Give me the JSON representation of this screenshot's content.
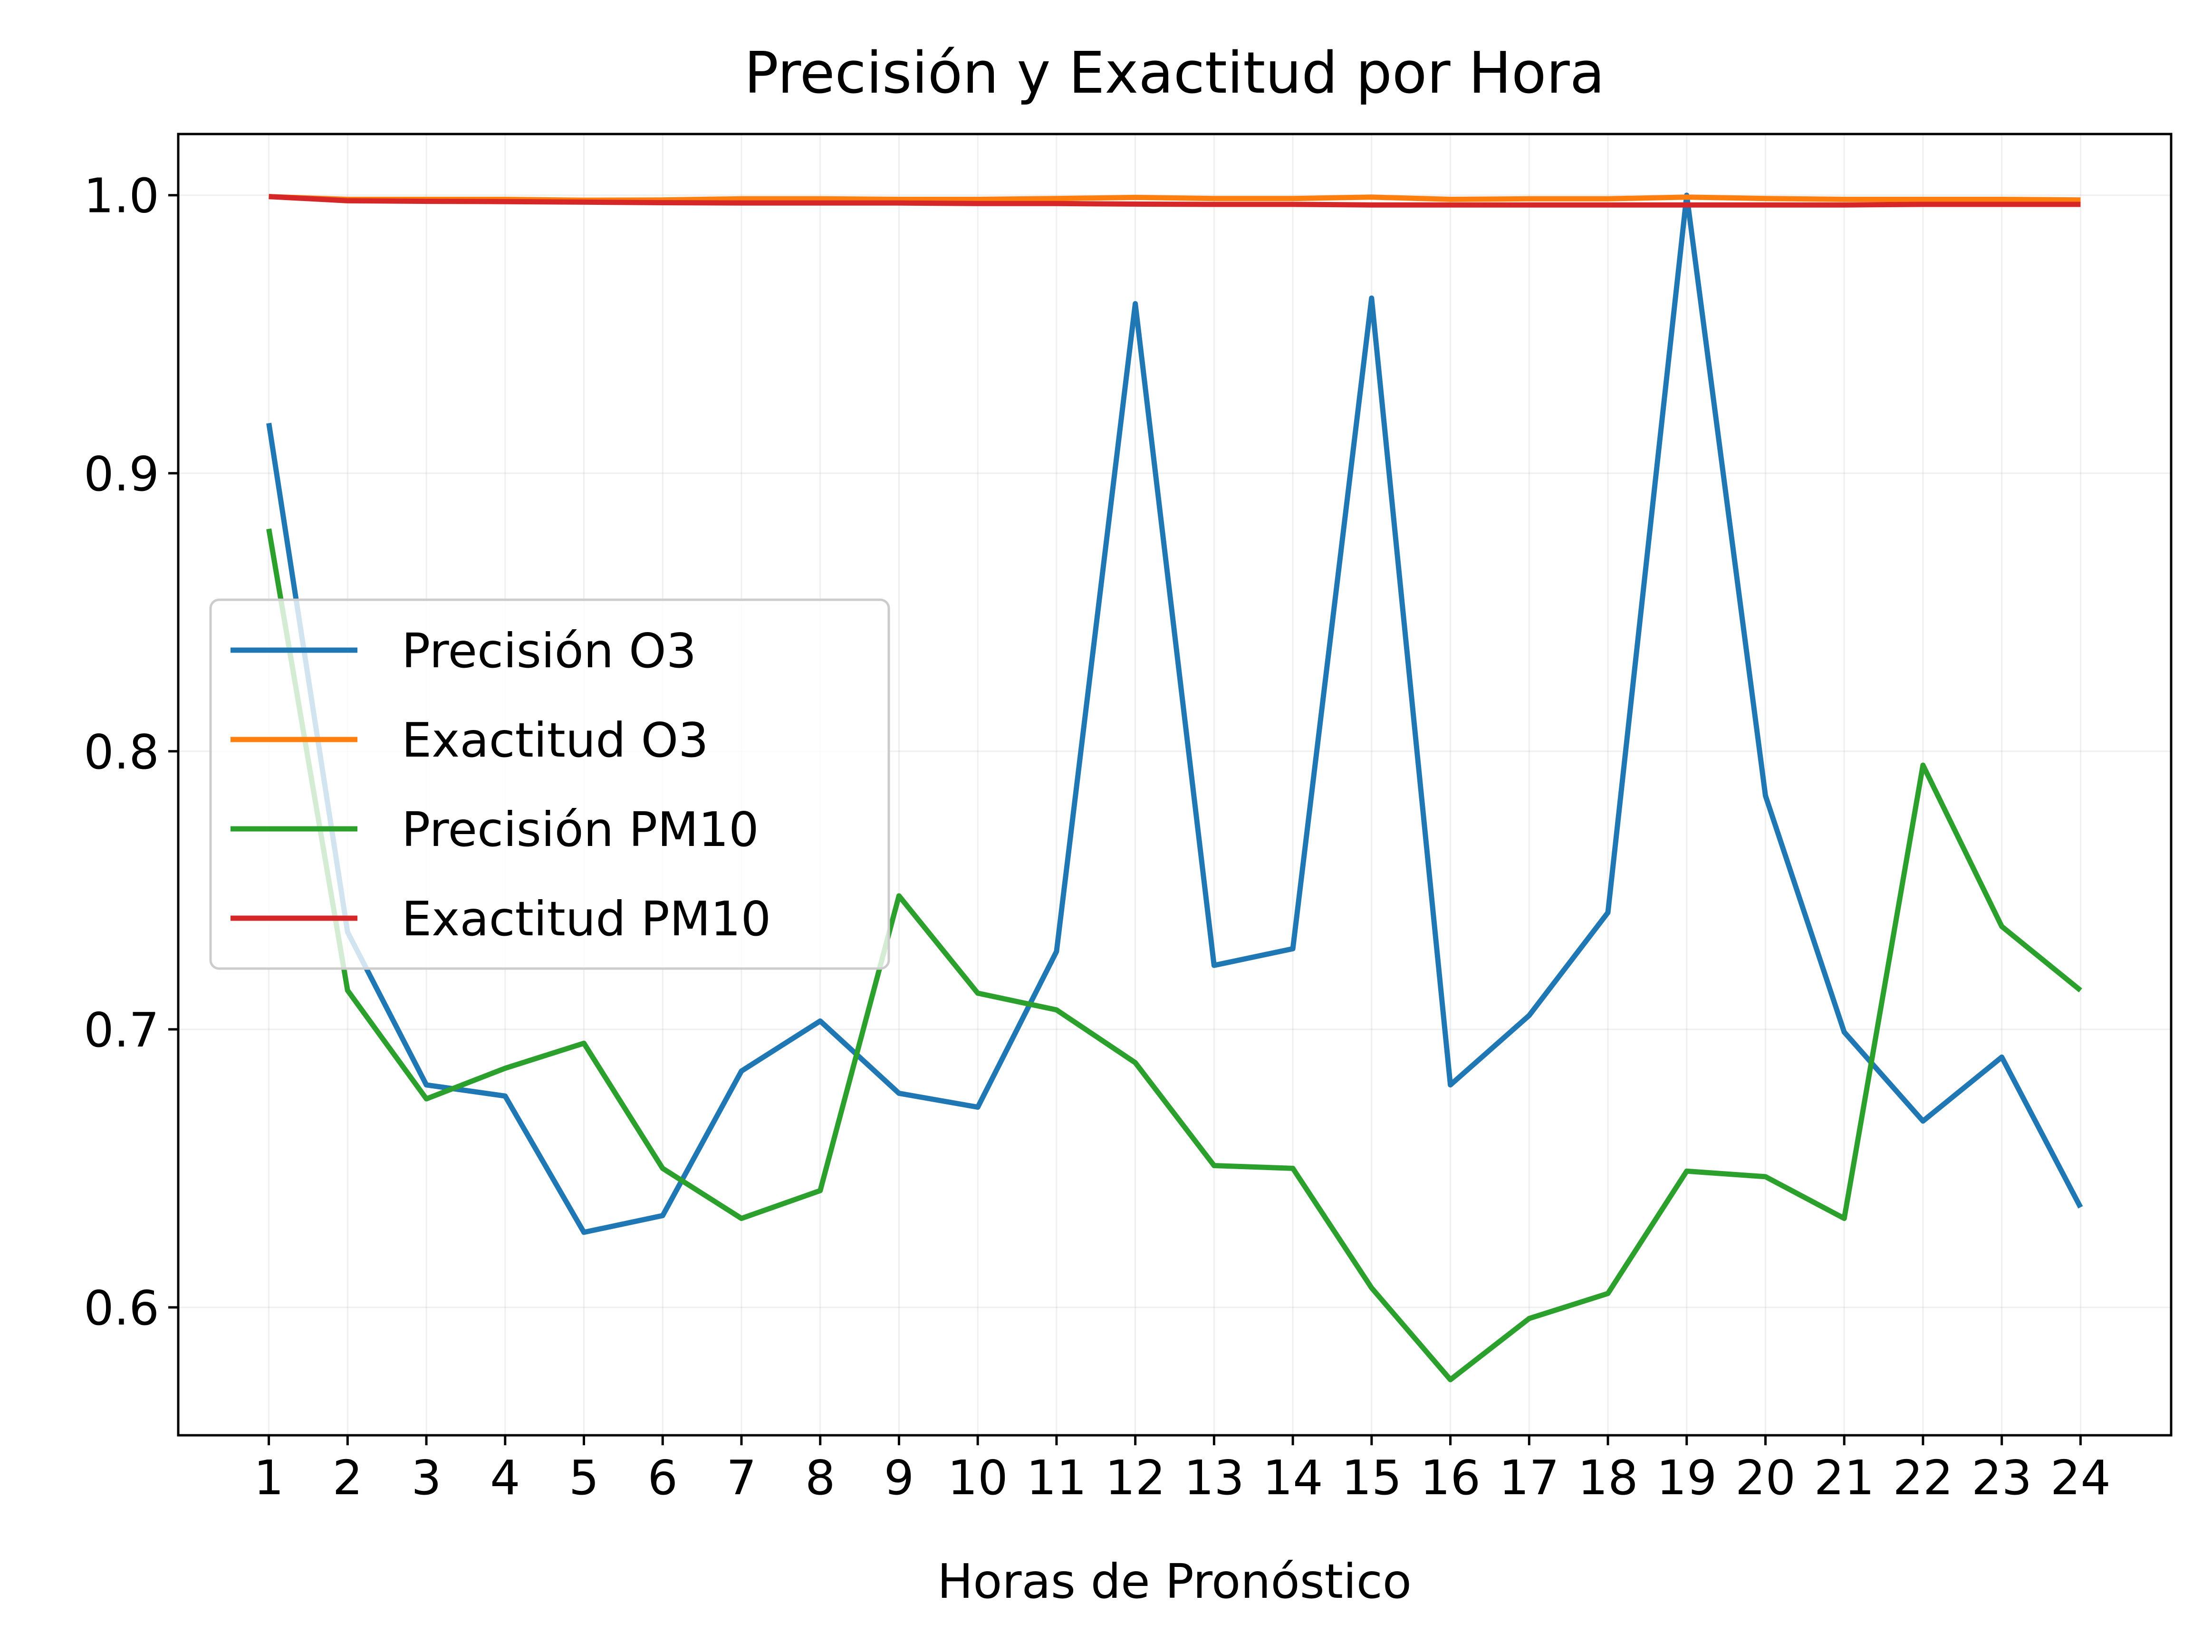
{
  "chart_data": {
    "type": "line",
    "title": "Precisión y Exactitud por Hora",
    "xlabel": "Horas de Pronóstico",
    "ylabel": "",
    "x": [
      1,
      2,
      3,
      4,
      5,
      6,
      7,
      8,
      9,
      10,
      11,
      12,
      13,
      14,
      15,
      16,
      17,
      18,
      19,
      20,
      21,
      22,
      23,
      24
    ],
    "xlim": [
      -0.15,
      25.15
    ],
    "ylim": [
      0.554,
      1.022
    ],
    "xticks": [
      "1",
      "2",
      "3",
      "4",
      "5",
      "6",
      "7",
      "8",
      "9",
      "10",
      "11",
      "12",
      "13",
      "14",
      "15",
      "16",
      "17",
      "18",
      "19",
      "20",
      "21",
      "22",
      "23",
      "24"
    ],
    "yticks": [
      "0.6",
      "0.7",
      "0.8",
      "0.9",
      "1.0"
    ],
    "grid": true,
    "legend_position": "center-left",
    "series": [
      {
        "name": "Precisión O3",
        "color": "#1f77b4",
        "values": [
          0.918,
          0.735,
          0.68,
          0.676,
          0.627,
          0.633,
          0.685,
          0.703,
          0.677,
          0.672,
          0.728,
          0.961,
          0.723,
          0.729,
          0.963,
          0.68,
          0.705,
          0.742,
          1.0,
          0.784,
          0.699,
          0.667,
          0.69,
          0.636
        ]
      },
      {
        "name": "Exactitud O3",
        "color": "#ff7f0e",
        "values": [
          0.9995,
          0.9985,
          0.9985,
          0.9985,
          0.9982,
          0.9983,
          0.9987,
          0.9987,
          0.9985,
          0.9985,
          0.9988,
          0.9992,
          0.9988,
          0.9988,
          0.9993,
          0.9985,
          0.9987,
          0.9987,
          0.9993,
          0.9988,
          0.9985,
          0.9985,
          0.9985,
          0.9983
        ]
      },
      {
        "name": "Precisión PM10",
        "color": "#2ca02c",
        "values": [
          0.88,
          0.714,
          0.675,
          0.686,
          0.695,
          0.65,
          0.632,
          0.642,
          0.748,
          0.713,
          0.707,
          0.688,
          0.651,
          0.65,
          0.607,
          0.574,
          0.596,
          0.605,
          0.649,
          0.647,
          0.632,
          0.795,
          0.737,
          0.714
        ]
      },
      {
        "name": "Exactitud PM10",
        "color": "#d62728",
        "values": [
          0.9995,
          0.998,
          0.9978,
          0.9977,
          0.9975,
          0.9973,
          0.9972,
          0.9972,
          0.9972,
          0.997,
          0.997,
          0.9968,
          0.9967,
          0.9967,
          0.9965,
          0.9965,
          0.9965,
          0.9965,
          0.9965,
          0.9965,
          0.9965,
          0.9967,
          0.9967,
          0.9967
        ]
      }
    ]
  }
}
